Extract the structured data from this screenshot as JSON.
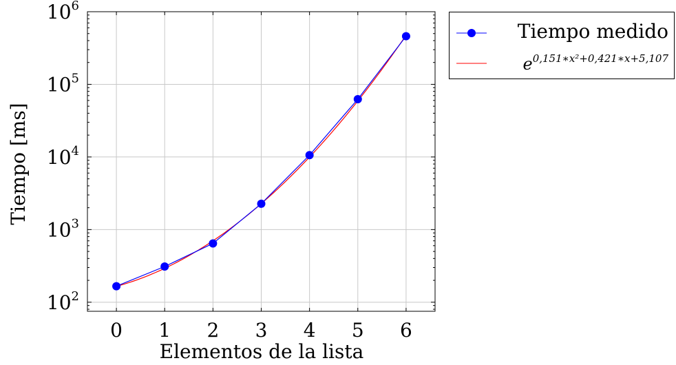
{
  "chart_data": {
    "type": "line",
    "xlabel": "Elementos de la lista",
    "ylabel": "Tiempo [ms]",
    "x": [
      0,
      1,
      2,
      3,
      4,
      5,
      6
    ],
    "xlim": [
      -0.6,
      6.6
    ],
    "ylim": [
      75,
      1000000
    ],
    "yscale": "log",
    "x_ticks": [
      "0",
      "1",
      "2",
      "3",
      "4",
      "5",
      "6"
    ],
    "y_ticks": [
      {
        "value": 100,
        "base": "10",
        "exp": "2"
      },
      {
        "value": 1000,
        "base": "10",
        "exp": "3"
      },
      {
        "value": 10000,
        "base": "10",
        "exp": "4"
      },
      {
        "value": 100000,
        "base": "10",
        "exp": "5"
      },
      {
        "value": 1000000,
        "base": "10",
        "exp": "6"
      }
    ],
    "grid": true,
    "legend_position": "outside-top-right",
    "series": [
      {
        "name": "Tiempo medido",
        "color": "#0000ff",
        "marker": "circle",
        "values": [
          166,
          310,
          645,
          2270,
          10600,
          62500,
          460000
        ]
      },
      {
        "name": "e^{0,151*x^2+0,421*x+5,107}",
        "color": "#ff0000",
        "marker": "none",
        "formula": {
          "a": 0.151,
          "b": 0.421,
          "c": 5.107
        }
      }
    ],
    "legend": {
      "entry1": "Tiempo medido",
      "entry2_base": "e",
      "entry2_exponent": "0,151∗x²+0,421∗x+5,107"
    }
  }
}
